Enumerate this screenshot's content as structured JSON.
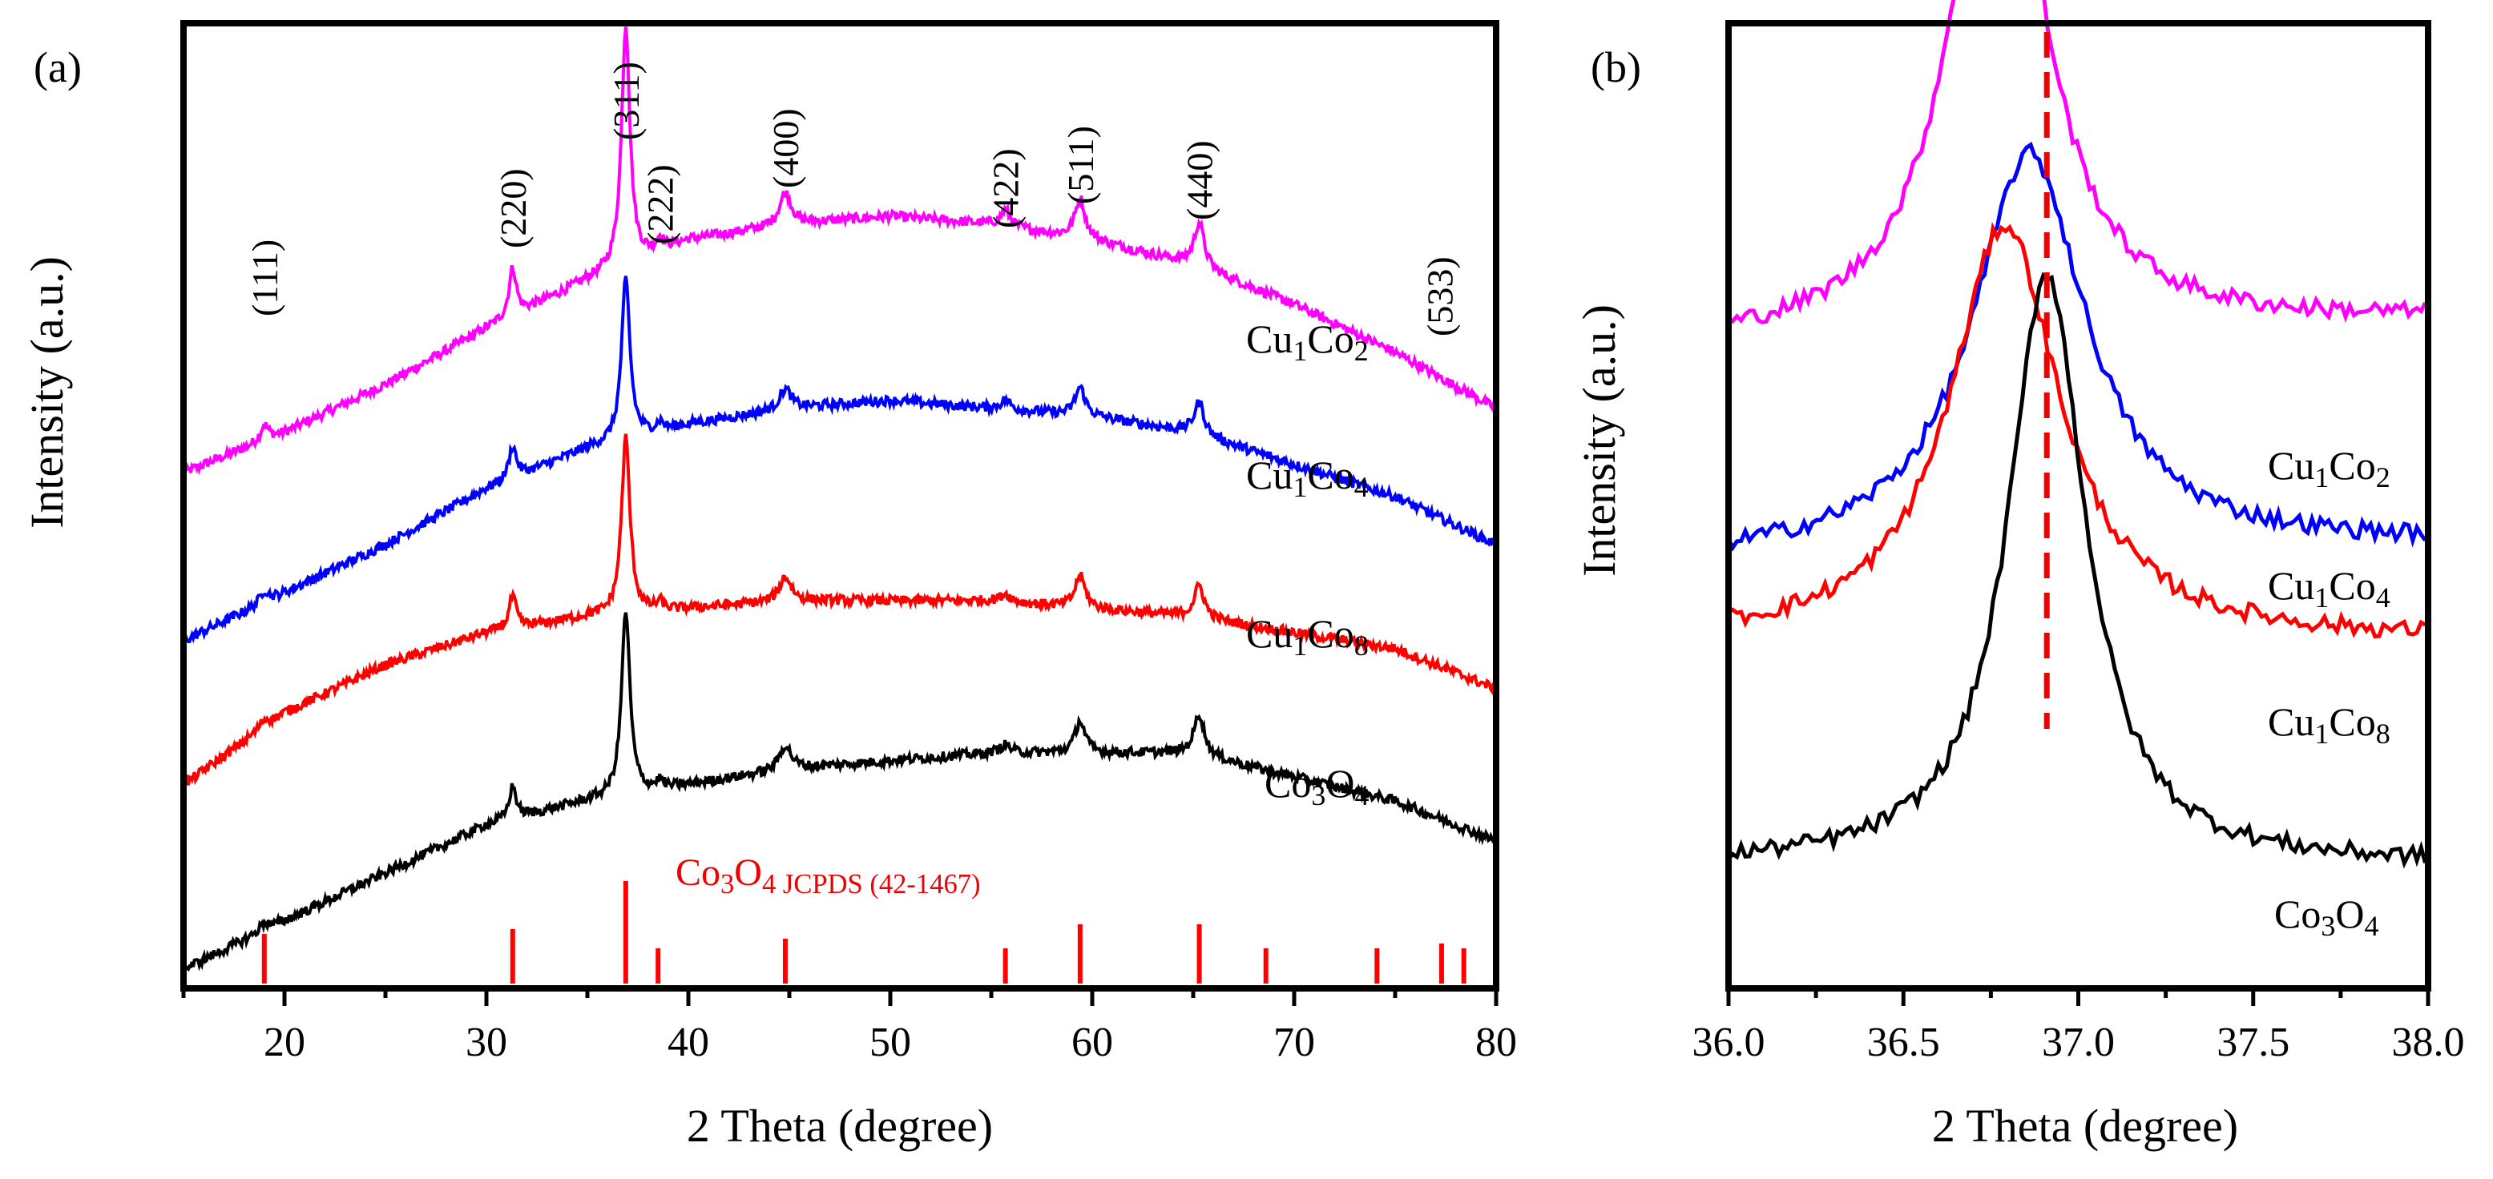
{
  "chart_data": [
    {
      "panel_label": "(a)",
      "type": "line",
      "xlabel": "2 Theta (degree)",
      "ylabel": "Intensity (a.u.)",
      "xlim": [
        15,
        80
      ],
      "xticks": [
        20,
        30,
        40,
        50,
        60,
        70,
        80
      ],
      "yticks_shown": false,
      "series": [
        {
          "name": "Cu1Co2",
          "label_parts": [
            "Cu",
            "1",
            "Co",
            "2"
          ],
          "color": "#ff00ff",
          "offset": 0.52,
          "baseline": {
            "x": [
              15,
              20,
              25,
              30,
              35,
              40,
              45,
              50,
              55,
              60,
              65,
              70,
              75,
              80
            ],
            "y": [
              0.0,
              0.05,
              0.11,
              0.18,
              0.24,
              0.29,
              0.31,
              0.32,
              0.31,
              0.29,
              0.26,
              0.21,
              0.15,
              0.08
            ]
          },
          "peaks": [
            [
              19.0,
              0.02,
              0.25
            ],
            [
              31.3,
              0.06,
              0.22
            ],
            [
              36.9,
              0.3,
              0.25
            ],
            [
              38.6,
              0.015,
              0.2
            ],
            [
              44.8,
              0.04,
              0.35
            ],
            [
              55.7,
              0.02,
              0.3
            ],
            [
              59.4,
              0.05,
              0.3
            ],
            [
              65.3,
              0.055,
              0.3
            ]
          ]
        },
        {
          "name": "Cu1Co4",
          "label_parts": [
            "Cu",
            "1",
            "Co",
            "4"
          ],
          "color": "#0000ff",
          "offset": 0.31,
          "baseline": {
            "x": [
              15,
              20,
              25,
              30,
              35,
              40,
              45,
              50,
              55,
              60,
              65,
              70,
              75,
              80
            ],
            "y": [
              0.0,
              0.06,
              0.12,
              0.19,
              0.24,
              0.27,
              0.29,
              0.3,
              0.29,
              0.28,
              0.26,
              0.22,
              0.18,
              0.12
            ]
          },
          "peaks": [
            [
              19.0,
              0.015,
              0.25
            ],
            [
              31.3,
              0.04,
              0.22
            ],
            [
              36.9,
              0.2,
              0.25
            ],
            [
              38.6,
              0.01,
              0.2
            ],
            [
              44.8,
              0.025,
              0.35
            ],
            [
              55.7,
              0.012,
              0.3
            ],
            [
              59.4,
              0.035,
              0.3
            ],
            [
              65.3,
              0.04,
              0.3
            ]
          ]
        },
        {
          "name": "Cu1Co8",
          "label_parts": [
            "Cu",
            "1",
            "Co",
            "8"
          ],
          "color": "#ff0000",
          "offset": 0.13,
          "baseline": {
            "x": [
              15,
              20,
              25,
              30,
              35,
              40,
              45,
              50,
              55,
              60,
              65,
              70,
              75,
              80
            ],
            "y": [
              0.0,
              0.09,
              0.15,
              0.19,
              0.21,
              0.22,
              0.23,
              0.23,
              0.23,
              0.22,
              0.21,
              0.19,
              0.17,
              0.12
            ]
          },
          "peaks": [
            [
              19.0,
              0.01,
              0.3
            ],
            [
              31.3,
              0.04,
              0.22
            ],
            [
              36.9,
              0.22,
              0.25
            ],
            [
              38.6,
              0.01,
              0.2
            ],
            [
              44.8,
              0.03,
              0.35
            ],
            [
              55.7,
              0.01,
              0.3
            ],
            [
              59.4,
              0.04,
              0.3
            ],
            [
              65.3,
              0.04,
              0.3
            ]
          ]
        },
        {
          "name": "Co3O4",
          "label_parts": [
            "Co",
            "3",
            "O",
            "4"
          ],
          "color": "#000000",
          "offset": -0.1,
          "baseline": {
            "x": [
              15,
              20,
              25,
              30,
              35,
              40,
              45,
              50,
              55,
              60,
              65,
              70,
              75,
              80
            ],
            "y": [
              0.0,
              0.06,
              0.12,
              0.18,
              0.21,
              0.23,
              0.25,
              0.26,
              0.27,
              0.27,
              0.27,
              0.24,
              0.21,
              0.16
            ]
          },
          "peaks": [
            [
              19.0,
              0.01,
              0.3
            ],
            [
              31.3,
              0.04,
              0.22
            ],
            [
              36.9,
              0.23,
              0.25
            ],
            [
              38.6,
              0.01,
              0.2
            ],
            [
              44.8,
              0.03,
              0.35
            ],
            [
              55.7,
              0.01,
              0.3
            ],
            [
              59.4,
              0.04,
              0.3
            ],
            [
              65.3,
              0.05,
              0.3
            ]
          ]
        }
      ],
      "peak_labels": [
        {
          "text": "(111)",
          "x": 19.0
        },
        {
          "text": "(220)",
          "x": 31.3
        },
        {
          "text": "(311)",
          "x": 36.9
        },
        {
          "text": "(222)",
          "x": 38.6
        },
        {
          "text": "(400)",
          "x": 44.8
        },
        {
          "text": "(422)",
          "x": 55.7
        },
        {
          "text": "(511)",
          "x": 59.4
        },
        {
          "text": "(440)",
          "x": 65.3
        },
        {
          "text": "(533)",
          "x": 77.2
        }
      ],
      "reference": {
        "label_parts": [
          "Co",
          "3",
          "O",
          "4 JCPDS (42-1467)"
        ],
        "color": "#ff0000",
        "lines": [
          {
            "x": 19.0,
            "intensity": 0.45
          },
          {
            "x": 31.3,
            "intensity": 0.5
          },
          {
            "x": 36.9,
            "intensity": 1.0
          },
          {
            "x": 38.5,
            "intensity": 0.3
          },
          {
            "x": 44.8,
            "intensity": 0.4
          },
          {
            "x": 55.7,
            "intensity": 0.3
          },
          {
            "x": 59.4,
            "intensity": 0.55
          },
          {
            "x": 65.3,
            "intensity": 0.55
          },
          {
            "x": 68.6,
            "intensity": 0.3
          },
          {
            "x": 74.1,
            "intensity": 0.3
          },
          {
            "x": 77.3,
            "intensity": 0.35
          },
          {
            "x": 78.4,
            "intensity": 0.3
          }
        ]
      }
    },
    {
      "panel_label": "(b)",
      "type": "line",
      "xlabel": "2 Theta (degree)",
      "ylabel": "Intensity (a.u.)",
      "xlim": [
        36.0,
        38.0
      ],
      "xticks": [
        "36.0",
        "36.5",
        "37.0",
        "37.5",
        "38.0"
      ],
      "yticks_shown": false,
      "reference_line": {
        "x": 36.91,
        "style": "dashed",
        "color": "#ee0000"
      },
      "series": [
        {
          "name": "Cu1Co2",
          "label_parts": [
            "Cu",
            "1",
            "Co",
            "2"
          ],
          "color": "#ff00ff",
          "peak_center": 36.77,
          "peak_width": 0.2,
          "peak_height": 0.7,
          "base_start": 0.7,
          "base_end": 0.73
        },
        {
          "name": "Cu1Co4",
          "label_parts": [
            "Cu",
            "1",
            "Co",
            "4"
          ],
          "color": "#0000ff",
          "peak_center": 36.86,
          "peak_width": 0.25,
          "peak_height": 0.5,
          "base_start": 0.43,
          "base_end": 0.45
        },
        {
          "name": "Cu1Co8",
          "label_parts": [
            "Cu",
            "1",
            "Co",
            "8"
          ],
          "color": "#ff0000",
          "peak_center": 36.79,
          "peak_width": 0.24,
          "peak_height": 0.52,
          "base_start": 0.33,
          "base_end": 0.33
        },
        {
          "name": "Co3O4",
          "label_parts": [
            "Co",
            "3",
            "O",
            "4"
          ],
          "color": "#000000",
          "peak_center": 36.91,
          "peak_width": 0.17,
          "peak_height": 0.74,
          "base_start": 0.05,
          "base_end": 0.05
        }
      ]
    }
  ]
}
